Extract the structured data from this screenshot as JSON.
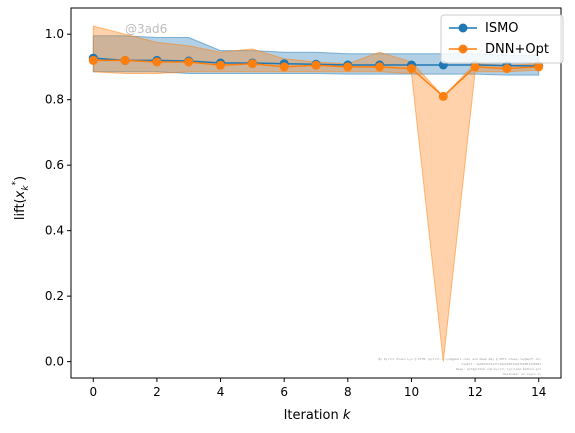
{
  "chart_data": {
    "type": "line",
    "x": [
      0,
      1,
      2,
      3,
      4,
      5,
      6,
      7,
      8,
      9,
      10,
      11,
      12,
      13,
      14
    ],
    "xticks": [
      0,
      2,
      4,
      6,
      8,
      10,
      12,
      14
    ],
    "yticks": [
      0.0,
      0.2,
      0.4,
      0.6,
      0.8,
      1.0
    ],
    "xlim": [
      -0.7,
      14.7
    ],
    "ylim": [
      -0.05,
      1.08
    ],
    "xlabel": "Iteration k",
    "ylabel": "lift(x_k*)",
    "grid": false,
    "legend": "top-right",
    "watermark": "@3ad6",
    "credit_lines": [
      "By Kyrill Olsen Lyo @ ETHZ (kyrill.o.lyo@gmail.com) and Deep Ray @ EPFL <deep.ray@epfl.ch>",
      "Commit: 3ad6d3313e3fce92e35813e9fe88513d5b84",
      "Repo: git@github.com:kyrill.lyo/ismo-method.git",
      "Hostname: ss-login.ll"
    ],
    "series": [
      {
        "name": "ISMO",
        "color": "#1f77b4",
        "values": [
          0.927,
          0.92,
          0.92,
          0.918,
          0.912,
          0.912,
          0.91,
          0.908,
          0.906,
          0.906,
          0.906,
          0.906,
          0.906,
          0.904,
          0.903
        ],
        "band_upper": [
          0.995,
          0.995,
          0.99,
          0.99,
          0.95,
          0.95,
          0.945,
          0.945,
          0.94,
          0.94,
          0.94,
          0.94,
          0.94,
          0.935,
          0.935
        ],
        "band_lower": [
          0.885,
          0.885,
          0.885,
          0.88,
          0.88,
          0.88,
          0.88,
          0.88,
          0.878,
          0.878,
          0.878,
          0.878,
          0.878,
          0.875,
          0.875
        ]
      },
      {
        "name": "DNN+Opt",
        "color": "#ff7f0e",
        "values": [
          0.92,
          0.92,
          0.915,
          0.915,
          0.905,
          0.91,
          0.9,
          0.905,
          0.9,
          0.9,
          0.895,
          0.81,
          0.9,
          0.895,
          0.9
        ],
        "band_upper": [
          1.025,
          1.0,
          0.975,
          0.965,
          0.945,
          0.955,
          0.925,
          0.915,
          0.91,
          0.945,
          0.915,
          0.81,
          0.91,
          0.905,
          0.91
        ],
        "band_lower": [
          0.885,
          0.88,
          0.88,
          0.885,
          0.885,
          0.885,
          0.885,
          0.885,
          0.885,
          0.885,
          0.88,
          0.0,
          0.885,
          0.885,
          0.89
        ]
      }
    ]
  }
}
